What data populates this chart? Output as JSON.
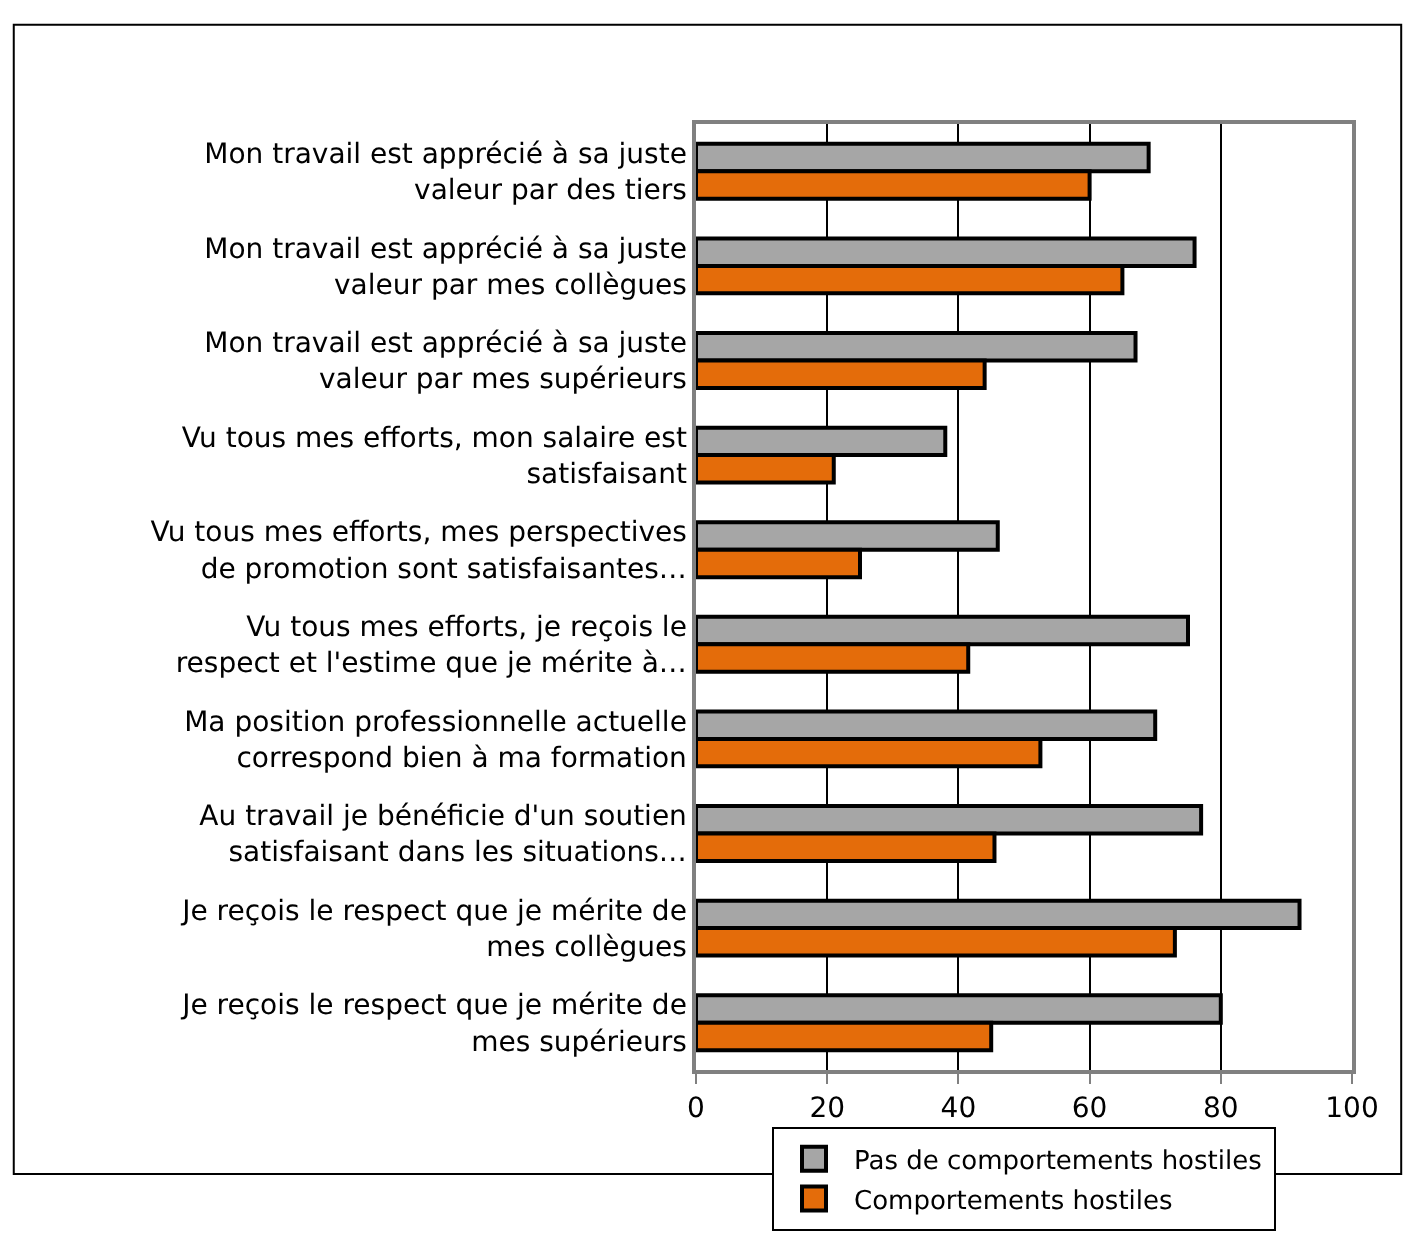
{
  "chart_data": {
    "type": "bar",
    "orientation": "horizontal",
    "categories": [
      "Mon travail est apprécié à sa juste valeur par des tiers",
      "Mon travail est apprécié à sa juste valeur par mes collègues",
      "Mon travail est apprécié à sa juste valeur par mes supérieurs",
      "Vu tous mes efforts, mon salaire est satisfaisant",
      "Vu tous mes efforts, mes perspectives de promotion sont satisfaisantes…",
      "Vu tous mes efforts, je reçois le respect et l'estime que je mérite à…",
      "Ma position professionnelle actuelle correspond bien à ma formation",
      "Au travail je bénéficie d'un soutien satisfaisant dans les situations…",
      "Je reçois le respect que je mérite de mes collègues",
      "Je reçois le respect que je mérite de mes supérieurs"
    ],
    "series": [
      {
        "name": "Pas de comportements hostiles",
        "color": "#a6a6a6",
        "values": [
          69,
          76,
          67,
          38,
          46,
          75,
          70,
          77,
          92,
          80
        ]
      },
      {
        "name": "Comportements hostiles",
        "color": "#e46c0a",
        "values": [
          60,
          65,
          44,
          21,
          25,
          41.5,
          52.5,
          45.5,
          73,
          45
        ]
      }
    ],
    "xlim": [
      0,
      100
    ],
    "xticks": [
      0,
      20,
      40,
      60,
      80,
      100
    ],
    "grid": "x",
    "legend": "bottom"
  }
}
